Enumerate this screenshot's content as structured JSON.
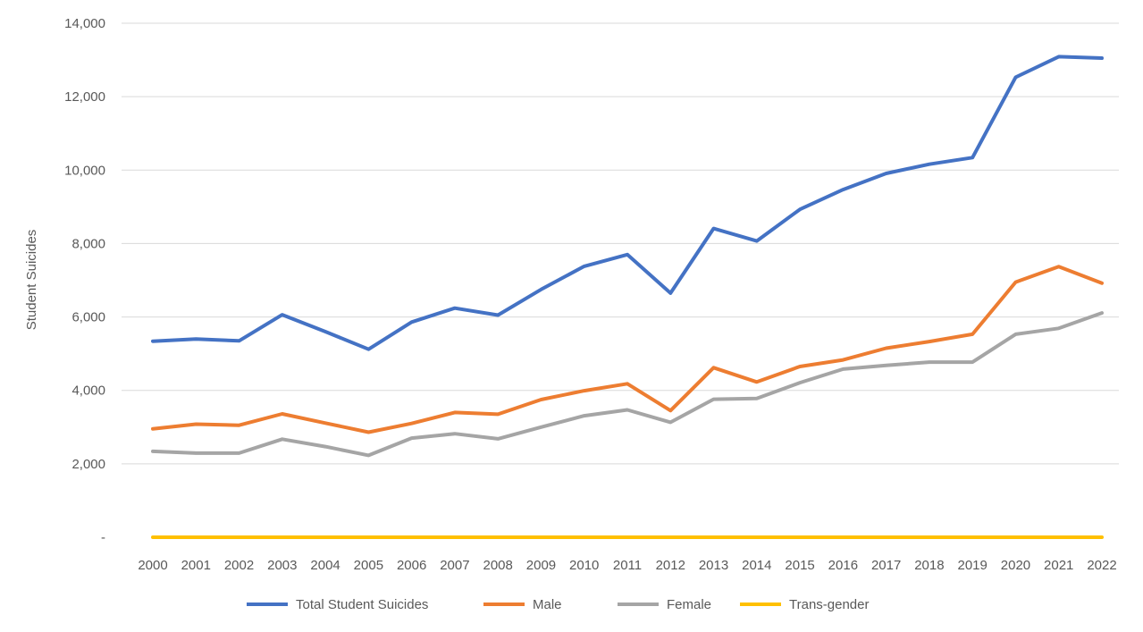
{
  "chart_data": {
    "type": "line",
    "title": "",
    "xlabel": "",
    "ylabel": "Student Suicides",
    "ylim": [
      0,
      14000
    ],
    "yticks": [
      "-",
      "2,000",
      "4,000",
      "6,000",
      "8,000",
      "10,000",
      "12,000",
      "14,000"
    ],
    "grid": true,
    "legend_position": "bottom",
    "categories": [
      "2000",
      "2001",
      "2002",
      "2003",
      "2004",
      "2005",
      "2006",
      "2007",
      "2008",
      "2009",
      "2010",
      "2011",
      "2012",
      "2013",
      "2014",
      "2015",
      "2016",
      "2017",
      "2018",
      "2019",
      "2020",
      "2021",
      "2022"
    ],
    "series": [
      {
        "name": "Total Student Suicides",
        "color": "#4472c4",
        "values": [
          5340,
          5400,
          5350,
          6060,
          5600,
          5120,
          5860,
          6240,
          6050,
          6750,
          7380,
          7700,
          6650,
          8410,
          8070,
          8930,
          9470,
          9910,
          10160,
          10340,
          12530,
          13090,
          13050
        ]
      },
      {
        "name": "Male",
        "color": "#ed7d31",
        "values": [
          2950,
          3080,
          3050,
          3360,
          3110,
          2860,
          3100,
          3400,
          3350,
          3750,
          3990,
          4180,
          3450,
          4620,
          4230,
          4650,
          4830,
          5150,
          5330,
          5530,
          6950,
          7370,
          6920
        ]
      },
      {
        "name": "Female",
        "color": "#a5a5a5",
        "values": [
          2340,
          2290,
          2290,
          2670,
          2470,
          2230,
          2700,
          2820,
          2680,
          3000,
          3310,
          3470,
          3130,
          3760,
          3780,
          4210,
          4580,
          4680,
          4770,
          4770,
          5530,
          5690,
          6110
        ]
      },
      {
        "name": "Trans-gender",
        "color": "#ffc000",
        "values": [
          0,
          0,
          0,
          0,
          0,
          0,
          0,
          0,
          0,
          0,
          0,
          0,
          0,
          0,
          0,
          0,
          0,
          0,
          0,
          0,
          0,
          0,
          0
        ]
      }
    ]
  }
}
